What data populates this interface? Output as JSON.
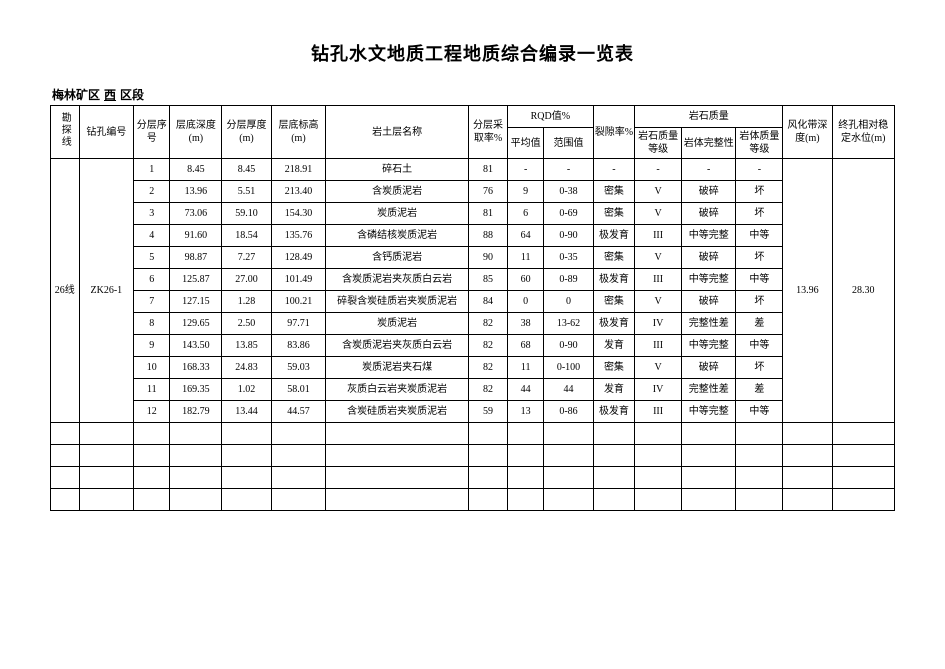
{
  "title": "钻孔水文地质工程地质综合编录一览表",
  "subtitle_prefix": "梅林矿区",
  "subtitle_mid": "西",
  "subtitle_suffix": "区段",
  "headers": {
    "expl_line": "勘探线",
    "hole_no": "钻孔编号",
    "layer_seq": "分层序号",
    "bottom_depth": "层底深度(m)",
    "layer_thick": "分层厚度(m)",
    "bottom_elev": "层底标高(m)",
    "rock_name": "岩土层名称",
    "sample_rate": "分层采取率%",
    "rqd_group": "RQD值%",
    "rqd_avg": "平均值",
    "rqd_range": "范围值",
    "crack_rate": "裂隙率%",
    "rock_quality_group": "岩石质量",
    "rock_qual_grade": "岩石质量等级",
    "integrity": "岩体完整性",
    "body_qual_grade": "岩体质量等级",
    "weathering_depth": "风化带深度(m)",
    "stable_water": "终孔相对稳定水位(m)"
  },
  "line_label": "26线",
  "hole_label": "ZK26-1",
  "weathering_depth_val": "13.96",
  "stable_water_val": "28.30",
  "rows": [
    {
      "seq": "1",
      "depth": "8.45",
      "thick": "8.45",
      "elev": "218.91",
      "name": "碎石土",
      "rate": "81",
      "rqd_avg": "-",
      "rqd_range": "-",
      "crack": "-",
      "rq": "-",
      "integ": "-",
      "bq": "-"
    },
    {
      "seq": "2",
      "depth": "13.96",
      "thick": "5.51",
      "elev": "213.40",
      "name": "含炭质泥岩",
      "rate": "76",
      "rqd_avg": "9",
      "rqd_range": "0-38",
      "crack": "密集",
      "rq": "V",
      "integ": "破碎",
      "bq": "坏"
    },
    {
      "seq": "3",
      "depth": "73.06",
      "thick": "59.10",
      "elev": "154.30",
      "name": "炭质泥岩",
      "rate": "81",
      "rqd_avg": "6",
      "rqd_range": "0-69",
      "crack": "密集",
      "rq": "V",
      "integ": "破碎",
      "bq": "坏"
    },
    {
      "seq": "4",
      "depth": "91.60",
      "thick": "18.54",
      "elev": "135.76",
      "name": "含磷结核炭质泥岩",
      "rate": "88",
      "rqd_avg": "64",
      "rqd_range": "0-90",
      "crack": "极发育",
      "rq": "III",
      "integ": "中等完整",
      "bq": "中等"
    },
    {
      "seq": "5",
      "depth": "98.87",
      "thick": "7.27",
      "elev": "128.49",
      "name": "含钙质泥岩",
      "rate": "90",
      "rqd_avg": "11",
      "rqd_range": "0-35",
      "crack": "密集",
      "rq": "V",
      "integ": "破碎",
      "bq": "坏"
    },
    {
      "seq": "6",
      "depth": "125.87",
      "thick": "27.00",
      "elev": "101.49",
      "name": "含炭质泥岩夹灰质白云岩",
      "rate": "85",
      "rqd_avg": "60",
      "rqd_range": "0-89",
      "crack": "极发育",
      "rq": "III",
      "integ": "中等完整",
      "bq": "中等"
    },
    {
      "seq": "7",
      "depth": "127.15",
      "thick": "1.28",
      "elev": "100.21",
      "name": "碎裂含炭硅质岩夹炭质泥岩",
      "rate": "84",
      "rqd_avg": "0",
      "rqd_range": "0",
      "crack": "密集",
      "rq": "V",
      "integ": "破碎",
      "bq": "坏"
    },
    {
      "seq": "8",
      "depth": "129.65",
      "thick": "2.50",
      "elev": "97.71",
      "name": "炭质泥岩",
      "rate": "82",
      "rqd_avg": "38",
      "rqd_range": "13-62",
      "crack": "极发育",
      "rq": "IV",
      "integ": "完整性差",
      "bq": "差"
    },
    {
      "seq": "9",
      "depth": "143.50",
      "thick": "13.85",
      "elev": "83.86",
      "name": "含炭质泥岩夹灰质白云岩",
      "rate": "82",
      "rqd_avg": "68",
      "rqd_range": "0-90",
      "crack": "发育",
      "rq": "III",
      "integ": "中等完整",
      "bq": "中等"
    },
    {
      "seq": "10",
      "depth": "168.33",
      "thick": "24.83",
      "elev": "59.03",
      "name": "炭质泥岩夹石煤",
      "rate": "82",
      "rqd_avg": "11",
      "rqd_range": "0-100",
      "crack": "密集",
      "rq": "V",
      "integ": "破碎",
      "bq": "坏"
    },
    {
      "seq": "11",
      "depth": "169.35",
      "thick": "1.02",
      "elev": "58.01",
      "name": "灰质白云岩夹炭质泥岩",
      "rate": "82",
      "rqd_avg": "44",
      "rqd_range": "44",
      "crack": "发育",
      "rq": "IV",
      "integ": "完整性差",
      "bq": "差"
    },
    {
      "seq": "12",
      "depth": "182.79",
      "thick": "13.44",
      "elev": "44.57",
      "name": "含炭硅质岩夹炭质泥岩",
      "rate": "59",
      "rqd_avg": "13",
      "rqd_range": "0-86",
      "crack": "极发育",
      "rq": "III",
      "integ": "中等完整",
      "bq": "中等"
    }
  ],
  "colors": {
    "border": "#000000",
    "background": "#ffffff",
    "text": "#000000"
  },
  "fonts": {
    "title_size_pt": 18,
    "body_size_pt": 10,
    "family": "SimSun"
  }
}
